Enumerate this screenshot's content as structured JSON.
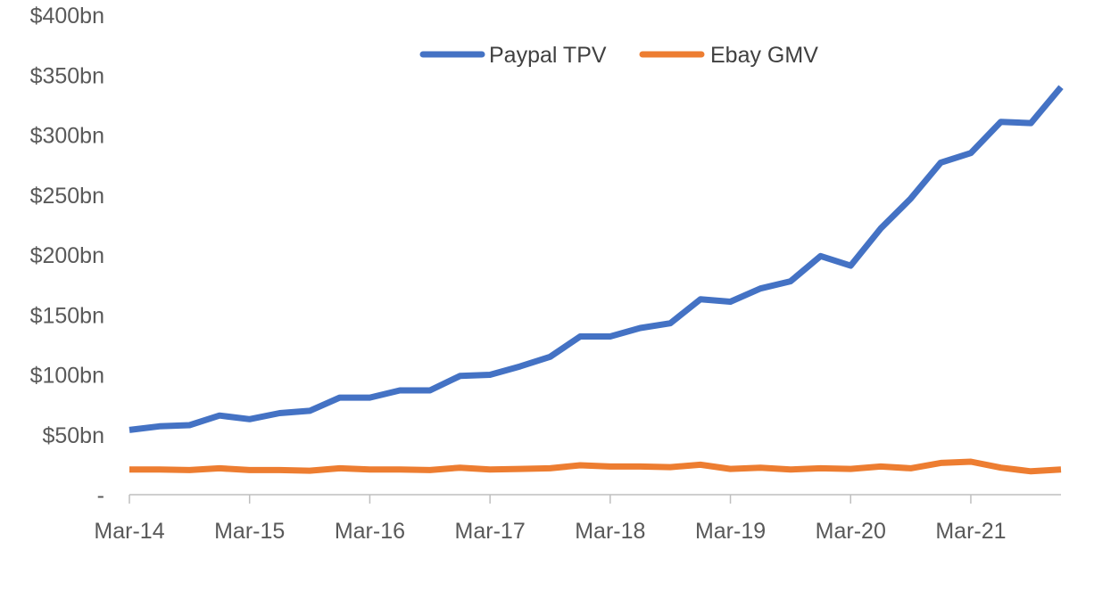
{
  "chart_data": {
    "type": "line",
    "title": "",
    "xlabel": "",
    "ylabel": "",
    "ylim": [
      0,
      400
    ],
    "y_ticks": [
      {
        "value": 0,
        "label": "-"
      },
      {
        "value": 50,
        "label": "$50bn"
      },
      {
        "value": 100,
        "label": "$100bn"
      },
      {
        "value": 150,
        "label": "$150bn"
      },
      {
        "value": 200,
        "label": "$200bn"
      },
      {
        "value": 250,
        "label": "$250bn"
      },
      {
        "value": 300,
        "label": "$300bn"
      },
      {
        "value": 350,
        "label": "$350bn"
      },
      {
        "value": 400,
        "label": "$400bn"
      }
    ],
    "x_ticks": [
      {
        "index": 0,
        "label": "Mar-14"
      },
      {
        "index": 4,
        "label": "Mar-15"
      },
      {
        "index": 8,
        "label": "Mar-16"
      },
      {
        "index": 12,
        "label": "Mar-17"
      },
      {
        "index": 16,
        "label": "Mar-18"
      },
      {
        "index": 20,
        "label": "Mar-19"
      },
      {
        "index": 24,
        "label": "Mar-20"
      },
      {
        "index": 28,
        "label": "Mar-21"
      }
    ],
    "categories": [
      "Mar-14",
      "Jun-14",
      "Sep-14",
      "Dec-14",
      "Mar-15",
      "Jun-15",
      "Sep-15",
      "Dec-15",
      "Mar-16",
      "Jun-16",
      "Sep-16",
      "Dec-16",
      "Mar-17",
      "Jun-17",
      "Sep-17",
      "Dec-17",
      "Mar-18",
      "Jun-18",
      "Sep-18",
      "Dec-18",
      "Mar-19",
      "Jun-19",
      "Sep-19",
      "Dec-19",
      "Mar-20",
      "Jun-20",
      "Sep-20",
      "Dec-20",
      "Mar-21",
      "Jun-21",
      "Sep-21",
      "Dec-21"
    ],
    "grid": false,
    "legend_position": "top-center",
    "series": [
      {
        "name": "Paypal TPV",
        "color": "#4472C4",
        "values": [
          54,
          57,
          58,
          66,
          63,
          68,
          70,
          81,
          81,
          87,
          87,
          99,
          100,
          107,
          115,
          132,
          132,
          139,
          143,
          163,
          161,
          172,
          178,
          199,
          191,
          222,
          247,
          277,
          285,
          311,
          310,
          340
        ]
      },
      {
        "name": "Ebay GMV",
        "color": "#ED7D31",
        "values": [
          21,
          21,
          20.5,
          22,
          20.5,
          20.5,
          20,
          22,
          21,
          21,
          20.5,
          22.5,
          21,
          21.5,
          22,
          24.5,
          23.5,
          23.5,
          23,
          25,
          21.5,
          22.5,
          21,
          22,
          21.5,
          23.5,
          22,
          26.5,
          27.5,
          22.5,
          19.5,
          21
        ]
      }
    ]
  }
}
